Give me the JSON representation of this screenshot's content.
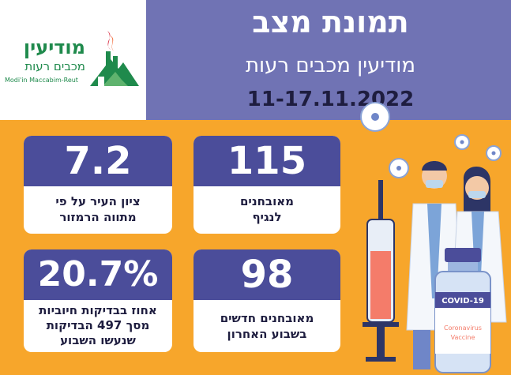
{
  "header": {
    "title": "תמונת מצב",
    "subtitle": "מודיעין מכבים רעות",
    "date_range": "11-17.11.2022"
  },
  "logo": {
    "name_he": "מודיעין",
    "sub_he": "מכבים רעות",
    "name_en": "Modi'in Maccabim-Reut"
  },
  "cards": [
    {
      "value": "115",
      "line1": "מאובחנים",
      "line2": "לנגיף",
      "line3": ""
    },
    {
      "value": "7.2",
      "line1": "ציון העיר על פי",
      "line2": "מתווה הרמזור",
      "line3": ""
    },
    {
      "value": "98",
      "line1": "מאובחנים חדשים",
      "line2": "בשבוע האחרון",
      "line3": ""
    },
    {
      "value": "20.7%",
      "line1": "אחוז בבדיקות חיוביות",
      "line2": "מסך 497 הבדיקות",
      "line3": "שנעשו השבוע"
    }
  ],
  "illustration": {
    "vial_label": "COVID-19",
    "vial_sub1": "Coronavirus",
    "vial_sub2": "Vaccine"
  },
  "colors": {
    "background": "#f7a62b",
    "header": "#7073b4",
    "card_value_bg": "#4b4d9a",
    "text_dark": "#1e1d3f",
    "logo_green": "#1f8a4c"
  }
}
